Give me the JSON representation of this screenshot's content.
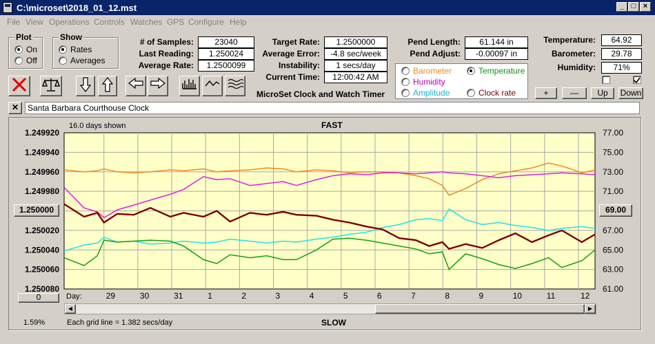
{
  "window": {
    "title": "C:\\microset\\2018_01_12.mst"
  },
  "menu": [
    "File",
    "View",
    "Operations",
    "Controls",
    "Watches",
    "GPS",
    "Configure",
    "Help"
  ],
  "plot_group": {
    "label": "Plot",
    "on": "On",
    "off": "Off",
    "selected": "On"
  },
  "show_group": {
    "label": "Show",
    "rates": "Rates",
    "averages": "Averages",
    "selected": "Rates"
  },
  "stats": {
    "samples_label": "# of Samples:",
    "samples": "23040",
    "last_reading_label": "Last Reading:",
    "last_reading": "1.250024",
    "average_rate_label": "Average Rate:",
    "average_rate": "1.2500099",
    "target_rate_label": "Target Rate:",
    "target_rate": "1.2500000",
    "average_error_label": "Average Error:",
    "average_error": "-4.8 sec/week",
    "instability_label": "Instability:",
    "instability": "1 secs/day",
    "current_time_label": "Current Time:",
    "current_time": "12:00:42 AM",
    "pend_length_label": "Pend Length:",
    "pend_length": "61.144 in",
    "pend_adjust_label": "Pend Adjust:",
    "pend_adjust": "-0.00097 in"
  },
  "app_caption": "MicroSet Clock and Watch Timer",
  "environment": {
    "temperature_label": "Temperature:",
    "temperature": "64.92",
    "barometer_label": "Barometer:",
    "barometer": "29.78",
    "humidity_label": "Humidity:",
    "humidity": "71%"
  },
  "aux_legend": {
    "barometer": "Barometer",
    "humidity": "Humidity",
    "amplitude": "Amplitude",
    "temperature": "Temperature",
    "clock_rate": "Clock rate",
    "selected": "Temperature"
  },
  "aux_buttons": {
    "plus": "+",
    "minus": "—",
    "up": "Up",
    "down": "Down"
  },
  "clock_name": "Santa Barbara Courthouse Clock",
  "chart_labels": {
    "days_shown": "16.0 days shown",
    "fast": "FAST",
    "slow": "SLOW",
    "day_label": "Day:",
    "grid_note": "Each grid line = 1.382 secs/day",
    "left_value_button": "1.250000",
    "right_value_button": "69.00",
    "zero_button": "0",
    "percent": "1.59%"
  },
  "colors": {
    "barometer": "#f08a1c",
    "humidity": "#e020e0",
    "amplitude": "#20e0f0",
    "temperature": "#10a010",
    "clock_rate": "#7a0000",
    "plot_bg": "#ffffc8"
  },
  "chart_data": {
    "type": "line",
    "x_unit": "day",
    "x_ticks": [
      "29",
      "30",
      "31",
      "1",
      "2",
      "3",
      "4",
      "5",
      "6",
      "7",
      "8",
      "9",
      "10",
      "11",
      "12"
    ],
    "y_left": {
      "ticks": [
        "1.249920",
        "1.249940",
        "1.249960",
        "1.249980",
        "1.250000",
        "1.250020",
        "1.250040",
        "1.250060",
        "1.250080"
      ],
      "range": [
        1.24992,
        1.25008
      ],
      "inverted": true
    },
    "y_right": {
      "ticks": [
        "77.00",
        "75.00",
        "73.00",
        "71.00",
        "69.00",
        "67.00",
        "65.00",
        "63.00",
        "61.00"
      ],
      "range": [
        61,
        77
      ]
    },
    "x": [
      0,
      0.6,
      1,
      1.2,
      1.6,
      2.1,
      2.6,
      3.2,
      3.6,
      4.2,
      4.6,
      5.0,
      5.6,
      6.1,
      6.6,
      7.0,
      7.6,
      8.1,
      8.6,
      9.1,
      9.6,
      10.1,
      10.6,
      11.0,
      11.4,
      11.6,
      12.1,
      12.6,
      13.1,
      13.6,
      14.1,
      14.6,
      15.0,
      15.6,
      16.0
    ],
    "series": [
      {
        "name": "Barometer",
        "axis": "right",
        "values": [
          73.2,
          73.0,
          73.1,
          73.3,
          73.0,
          72.9,
          73.0,
          73.2,
          73.1,
          73.3,
          73.0,
          73.1,
          73.2,
          73.4,
          73.3,
          73.0,
          73.2,
          73.1,
          72.9,
          73.0,
          73.0,
          72.9,
          72.6,
          72.3,
          71.6,
          70.6,
          71.3,
          72.2,
          72.8,
          73.1,
          73.4,
          73.9,
          73.6,
          72.9,
          73.2
        ]
      },
      {
        "name": "Humidity",
        "axis": "right",
        "values": [
          71.4,
          69.3,
          68.9,
          68.3,
          69.1,
          69.6,
          70.1,
          70.7,
          71.2,
          72.5,
          72.2,
          72.3,
          71.6,
          71.8,
          72.0,
          71.6,
          72.2,
          72.6,
          72.8,
          72.7,
          72.9,
          72.9,
          72.8,
          72.9,
          73.0,
          72.9,
          72.8,
          72.6,
          72.4,
          72.6,
          72.7,
          72.8,
          72.9,
          72.8,
          72.7
        ]
      },
      {
        "name": "Amplitude",
        "axis": "right",
        "values": [
          64.9,
          65.5,
          65.7,
          66.3,
          65.8,
          65.9,
          65.6,
          65.7,
          65.9,
          65.7,
          65.8,
          66.1,
          65.9,
          65.7,
          65.9,
          65.8,
          66.1,
          66.3,
          66.6,
          66.8,
          67.3,
          67.6,
          68.1,
          68.2,
          68.0,
          69.2,
          68.1,
          67.6,
          67.8,
          67.5,
          67.3,
          67.0,
          67.2,
          67.4,
          67.2
        ]
      },
      {
        "name": "Temperature",
        "axis": "right",
        "values": [
          64.2,
          63.4,
          64.4,
          66.0,
          65.8,
          65.9,
          66.0,
          65.9,
          65.4,
          64.0,
          63.6,
          64.5,
          64.2,
          64.4,
          64.0,
          64.0,
          65.0,
          66.1,
          66.2,
          66.0,
          65.7,
          65.4,
          65.1,
          64.6,
          64.8,
          63.0,
          64.6,
          64.1,
          63.5,
          63.1,
          63.6,
          64.2,
          63.2,
          63.9,
          65.0
        ]
      },
      {
        "name": "Clock rate",
        "axis": "left",
        "values": [
          1.249993,
          1.250006,
          1.250002,
          1.250012,
          1.250003,
          1.250004,
          1.249997,
          1.250006,
          1.250002,
          1.250006,
          1.25,
          1.250011,
          1.250002,
          1.250004,
          1.250001,
          1.250004,
          1.250005,
          1.250009,
          1.250012,
          1.250016,
          1.250019,
          1.250028,
          1.25003,
          1.250036,
          1.250032,
          1.250039,
          1.250034,
          1.250038,
          1.25003,
          1.250023,
          1.250032,
          1.250025,
          1.25002,
          1.250032,
          1.250024
        ]
      }
    ]
  }
}
